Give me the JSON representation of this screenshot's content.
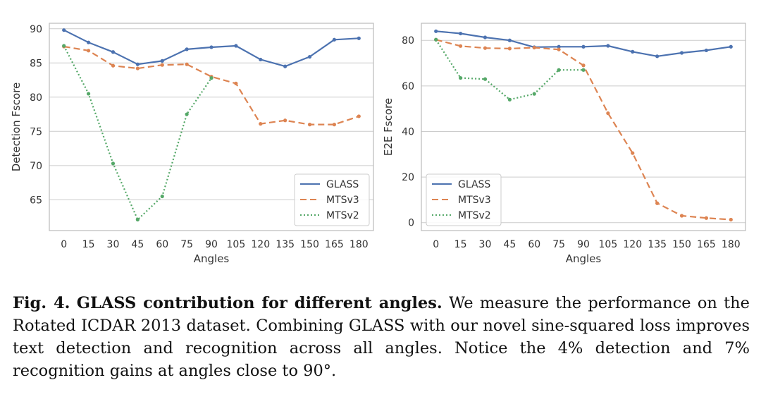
{
  "chart_data": [
    {
      "type": "line",
      "title": "",
      "xlabel": "Angles",
      "ylabel": "Detection Fscore",
      "x": [
        0,
        15,
        30,
        45,
        60,
        75,
        90,
        105,
        120,
        135,
        150,
        165,
        180
      ],
      "x_tick_labels": [
        "0",
        "15",
        "30",
        "45",
        "60",
        "75",
        "90",
        "105",
        "120",
        "135",
        "150",
        "165",
        "180"
      ],
      "y_ticks": [
        65,
        70,
        75,
        80,
        85,
        90
      ],
      "y_tick_labels": [
        "65",
        "70",
        "75",
        "80",
        "85",
        "90"
      ],
      "ylim": [
        60.5,
        90.8
      ],
      "grid": true,
      "legend_position": "bottom-right",
      "series": [
        {
          "name": "GLASS",
          "color": "#4c72b0",
          "dash": "solid",
          "values": [
            89.8,
            88.0,
            86.6,
            84.8,
            85.3,
            87.0,
            87.3,
            87.5,
            85.5,
            84.5,
            85.9,
            88.4,
            88.6
          ]
        },
        {
          "name": "MTSv3",
          "color": "#dd8452",
          "dash": "dashed",
          "values": [
            87.4,
            86.8,
            84.6,
            84.2,
            84.7,
            84.8,
            83.0,
            82.0,
            76.1,
            76.6,
            76.0,
            76.0,
            77.2
          ]
        },
        {
          "name": "MTSv2",
          "color": "#55a868",
          "dash": "dotted",
          "values": [
            87.5,
            80.5,
            70.3,
            62.1,
            65.5,
            77.5,
            82.8,
            null,
            null,
            null,
            null,
            null,
            null
          ]
        }
      ]
    },
    {
      "type": "line",
      "title": "",
      "xlabel": "Angles",
      "ylabel": "E2E Fscore",
      "x": [
        0,
        15,
        30,
        45,
        60,
        75,
        90,
        105,
        120,
        135,
        150,
        165,
        180
      ],
      "x_tick_labels": [
        "0",
        "15",
        "30",
        "45",
        "60",
        "75",
        "90",
        "105",
        "120",
        "135",
        "150",
        "165",
        "180"
      ],
      "y_ticks": [
        0,
        20,
        40,
        60,
        80
      ],
      "y_tick_labels": [
        "0",
        "20",
        "40",
        "60",
        "80"
      ],
      "ylim": [
        -3.5,
        87.5
      ],
      "grid": true,
      "legend_position": "bottom-left",
      "series": [
        {
          "name": "GLASS",
          "color": "#4c72b0",
          "dash": "solid",
          "values": [
            84.0,
            83.0,
            81.3,
            80.0,
            77.0,
            77.2,
            77.2,
            77.6,
            75.0,
            73.0,
            74.5,
            75.6,
            77.2
          ]
        },
        {
          "name": "MTSv3",
          "color": "#dd8452",
          "dash": "dashed",
          "values": [
            80.3,
            77.5,
            76.6,
            76.4,
            76.8,
            76.0,
            69.0,
            48.0,
            30.5,
            8.5,
            3.0,
            2.0,
            1.3
          ]
        },
        {
          "name": "MTSv2",
          "color": "#55a868",
          "dash": "dotted",
          "values": [
            80.3,
            63.5,
            63.0,
            54.0,
            56.5,
            67.0,
            67.0,
            null,
            null,
            null,
            null,
            null,
            null
          ]
        }
      ]
    }
  ],
  "caption": {
    "label": "Fig. 4.",
    "title": "GLASS contribution for different angles.",
    "text": "We measure the performance on the Rotated ICDAR 2013 dataset. Combining GLASS with our novel sine-squared loss improves text detection and recognition across all angles. Notice the 4% detection and 7% recognition gains at angles close to 90°."
  }
}
